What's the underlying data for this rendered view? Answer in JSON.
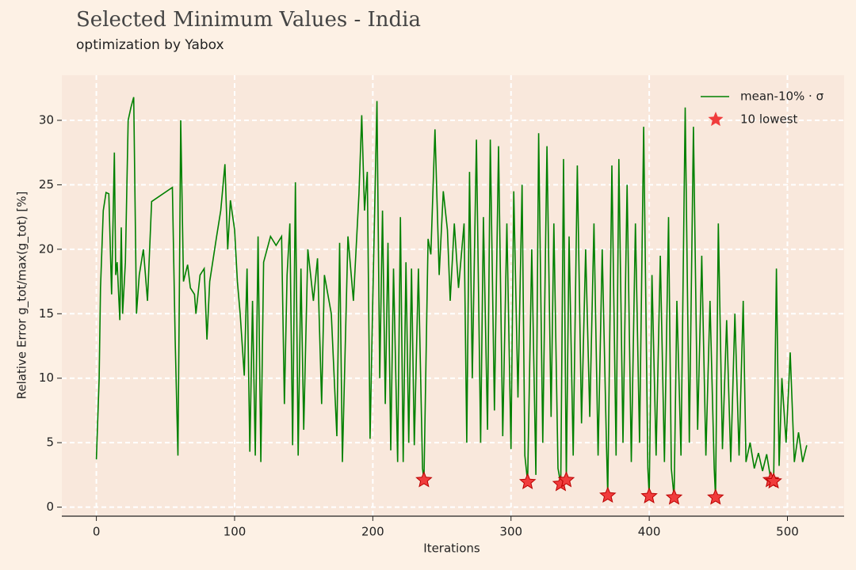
{
  "chart_data": {
    "type": "line",
    "title": "Selected Minimum Values - India",
    "subtitle": "optimization by Yabox",
    "xlabel": "Iterations",
    "ylabel": "Relative Error g_tot/max(g_tot) [%]",
    "xlim": [
      -25,
      541
    ],
    "ylim": [
      -0.7,
      33.5
    ],
    "xticks": [
      0,
      100,
      200,
      300,
      400,
      500
    ],
    "yticks": [
      0,
      5,
      10,
      15,
      20,
      25,
      30
    ],
    "grid": true,
    "legend": "upper right",
    "series": [
      {
        "name": "mean-10% · σ",
        "color": "#008000",
        "marker": "none",
        "x": [
          0,
          2,
          3,
          5,
          7,
          9,
          11,
          13,
          14,
          15,
          17,
          18,
          19,
          21,
          23,
          25,
          27,
          29,
          31,
          34,
          37,
          40,
          55,
          57,
          59,
          60,
          61,
          63,
          66,
          68,
          71,
          72,
          75,
          78,
          80,
          82,
          87,
          90,
          93,
          95,
          97,
          100,
          102,
          104,
          107,
          109,
          111,
          113,
          115,
          117,
          119,
          121,
          126,
          130,
          134,
          136,
          138,
          140,
          142,
          144,
          146,
          148,
          150,
          153,
          157,
          160,
          163,
          165,
          170,
          174,
          176,
          178,
          182,
          186,
          190,
          192,
          194,
          196,
          198,
          200,
          203,
          205,
          207,
          209,
          211,
          213,
          215,
          218,
          220,
          222,
          224,
          226,
          228,
          230,
          233,
          236,
          237,
          240,
          242,
          245,
          248,
          251,
          254,
          256,
          259,
          262,
          266,
          268,
          270,
          272,
          275,
          278,
          280,
          283,
          285,
          288,
          291,
          294,
          297,
          300,
          302,
          305,
          308,
          310,
          312,
          315,
          318,
          320,
          323,
          326,
          329,
          331,
          334,
          336,
          338,
          340,
          342,
          345,
          348,
          351,
          354,
          357,
          360,
          363,
          366,
          369,
          370,
          373,
          376,
          378,
          381,
          384,
          387,
          390,
          393,
          396,
          399,
          400,
          402,
          405,
          408,
          411,
          414,
          416,
          418,
          420,
          423,
          426,
          429,
          432,
          435,
          438,
          441,
          444,
          447,
          448,
          450,
          453,
          456,
          459,
          462,
          465,
          468,
          470,
          473,
          476,
          479,
          482,
          485,
          488,
          490,
          492,
          494,
          496,
          499,
          502,
          505,
          508,
          511,
          514
        ],
        "values": [
          3.7,
          10,
          17,
          23,
          24.4,
          24.3,
          16.5,
          27.5,
          18,
          19,
          14.5,
          21.7,
          15,
          19,
          30,
          31,
          31.8,
          15,
          18,
          20,
          16,
          23.7,
          24.8,
          13,
          4,
          16,
          30,
          17.5,
          18.8,
          17,
          16.5,
          15,
          18,
          18.5,
          13,
          17.5,
          21,
          23,
          26.6,
          20,
          23.8,
          21.5,
          17.5,
          15,
          10.2,
          18.5,
          4.3,
          16,
          4,
          21,
          3.5,
          19,
          21,
          20.3,
          21,
          8,
          18,
          22,
          4.8,
          25.2,
          4,
          18.5,
          6,
          20,
          16,
          19.3,
          8,
          18,
          15,
          5.5,
          20.5,
          3.5,
          21,
          16,
          24.3,
          30.4,
          23,
          26,
          5.3,
          16.3,
          31.5,
          10,
          23,
          8,
          20.5,
          4.4,
          18.5,
          3.5,
          22.5,
          3.5,
          19,
          5,
          18.5,
          4.8,
          18.5,
          3,
          2.1,
          20.8,
          19.6,
          29.3,
          18,
          24.5,
          21.5,
          16,
          22,
          17,
          22,
          5,
          26,
          10,
          28.5,
          5,
          22.5,
          6,
          28.5,
          7.5,
          28,
          5.5,
          22,
          4.5,
          24.5,
          8.5,
          25,
          4,
          1.95,
          20,
          2.5,
          29,
          5,
          28,
          7,
          22,
          3,
          1.8,
          27,
          2.1,
          21,
          4,
          26.5,
          6.5,
          20,
          7,
          22,
          4,
          20,
          5,
          0.9,
          26.5,
          4,
          27,
          5,
          25,
          3.5,
          22,
          5,
          29.5,
          3,
          0.85,
          18,
          4,
          19.5,
          3.5,
          22.5,
          3,
          0.75,
          16,
          4,
          31,
          5,
          29.5,
          6,
          19.5,
          4,
          16,
          3,
          0.75,
          22,
          4.5,
          14.5,
          3.5,
          15,
          4,
          16,
          3.5,
          5,
          3,
          4.2,
          2.8,
          4.1,
          2.1,
          2.0,
          18.5,
          3.2,
          10,
          5,
          12,
          3.5,
          5.8,
          3.5,
          4.8
        ]
      },
      {
        "name": "10 lowest",
        "color": "#f03c3c",
        "marker": "star",
        "x": [
          237,
          312,
          336,
          340,
          370,
          400,
          418,
          448,
          488,
          490
        ],
        "values": [
          2.1,
          1.95,
          1.8,
          2.1,
          0.9,
          0.85,
          0.75,
          0.75,
          2.1,
          2.0
        ]
      }
    ]
  }
}
